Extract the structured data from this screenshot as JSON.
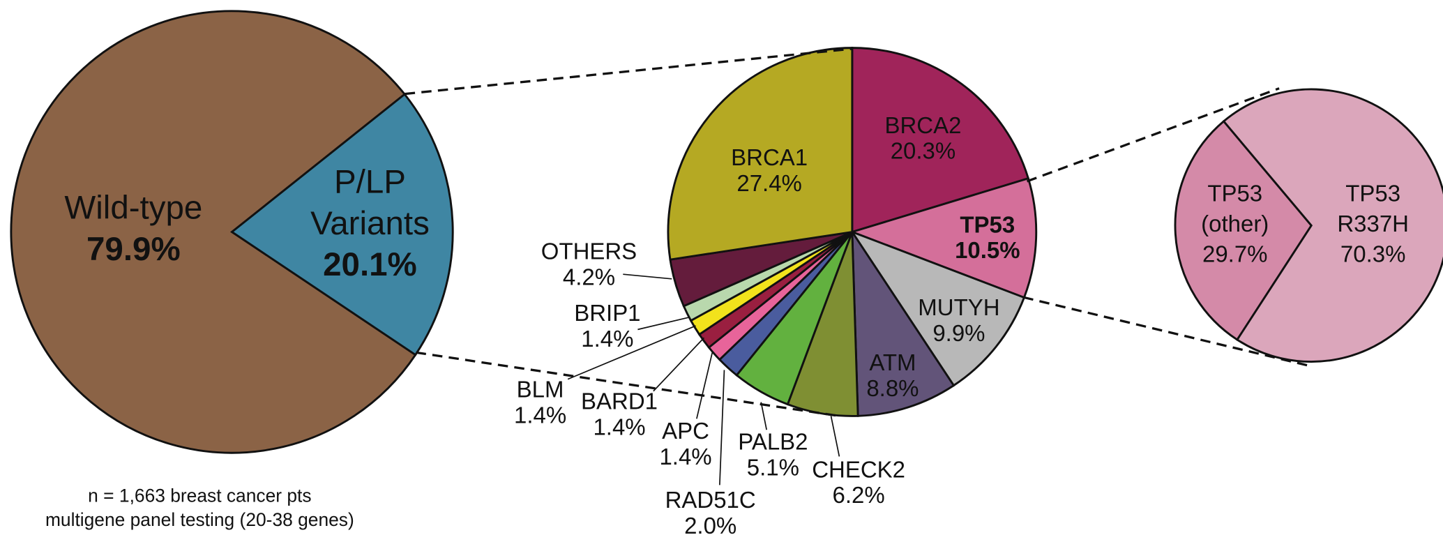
{
  "chart_data": [
    {
      "type": "pie",
      "labels": [
        [
          "Wild-type"
        ],
        [
          "P/LP",
          "Variants"
        ]
      ],
      "values": [
        79.9,
        20.1
      ],
      "value_labels": [
        "79.9%",
        "20.1%"
      ],
      "colors": [
        "#8b6346",
        "#3f86a3"
      ],
      "notes": [
        "n = 1,663 breast cancer pts",
        "multigene panel testing (20-38 genes)"
      ]
    },
    {
      "type": "pie",
      "labels": [
        [
          "BRCA2"
        ],
        [
          "TP53"
        ],
        [
          "MUTYH"
        ],
        [
          "ATM"
        ],
        [
          "CHECK2"
        ],
        [
          "PALB2"
        ],
        [
          "RAD51C"
        ],
        [
          "APC"
        ],
        [
          "BARD1"
        ],
        [
          "BLM"
        ],
        [
          "BRIP1"
        ],
        [
          "OTHERS"
        ],
        [
          "BRCA1"
        ]
      ],
      "values": [
        20.3,
        10.5,
        9.9,
        8.8,
        6.2,
        5.1,
        2.0,
        1.4,
        1.4,
        1.4,
        1.4,
        4.2,
        27.4
      ],
      "value_labels": [
        "20.3%",
        "10.5%",
        "9.9%",
        "8.8%",
        "6.2%",
        "5.1%",
        "2.0%",
        "1.4%",
        "1.4%",
        "1.4%",
        "1.4%",
        "4.2%",
        "27.4%"
      ],
      "colors": [
        "#a0245a",
        "#d46f9a",
        "#b8b8b8",
        "#625479",
        "#7f8f33",
        "#62b13f",
        "#4a5c9e",
        "#e8649a",
        "#9a1f40",
        "#f2e21c",
        "#b9d8ad",
        "#641c3c",
        "#b5a923"
      ]
    },
    {
      "type": "pie",
      "labels": [
        [
          "TP53",
          "(other)"
        ],
        [
          "TP53",
          "R337H"
        ]
      ],
      "values": [
        29.7,
        70.3
      ],
      "value_labels": [
        "29.7%",
        "70.3%"
      ],
      "colors": [
        "#d48aa8",
        "#dba6bb"
      ]
    }
  ]
}
